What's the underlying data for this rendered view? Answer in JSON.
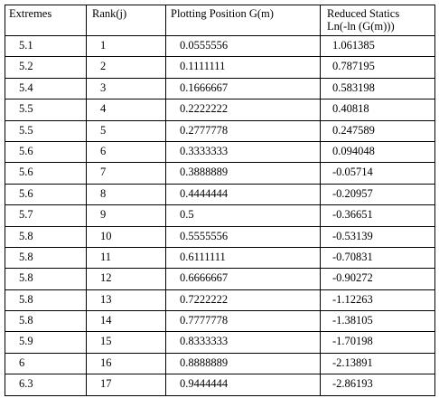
{
  "table": {
    "headers": {
      "col1": "Extremes",
      "col2": "Rank(j)",
      "col3": "Plotting Position G(m)",
      "col4_line1": "Reduced Statics",
      "col4_line2": "Ln(-ln  (G(m)))"
    },
    "rows": [
      [
        "5.1",
        "1",
        "0.0555556",
        "1.061385"
      ],
      [
        "5.2",
        "2",
        "0.1111111",
        "0.787195"
      ],
      [
        "5.4",
        "3",
        "0.1666667",
        "0.583198"
      ],
      [
        "5.5",
        "4",
        "0.2222222",
        "0.40818"
      ],
      [
        "5.5",
        "5",
        "0.2777778",
        "0.247589"
      ],
      [
        "5.6",
        "6",
        "0.3333333",
        "0.094048"
      ],
      [
        "5.6",
        "7",
        "0.3888889",
        "-0.05714"
      ],
      [
        "5.6",
        "8",
        "0.4444444",
        "-0.20957"
      ],
      [
        "5.7",
        "9",
        "0.5",
        "-0.36651"
      ],
      [
        "5.8",
        "10",
        "0.5555556",
        "-0.53139"
      ],
      [
        "5.8",
        "11",
        "0.6111111",
        "-0.70831"
      ],
      [
        "5.8",
        "12",
        "0.6666667",
        "-0.90272"
      ],
      [
        "5.8",
        "13",
        "0.7222222",
        "-1.12263"
      ],
      [
        "5.8",
        "14",
        "0.7777778",
        "-1.38105"
      ],
      [
        "5.9",
        "15",
        "0.8333333",
        "-1.70198"
      ],
      [
        "6",
        "16",
        "0.8888889",
        "-2.13891"
      ],
      [
        "6.3",
        "17",
        "0.9444444",
        "-2.86193"
      ]
    ]
  }
}
